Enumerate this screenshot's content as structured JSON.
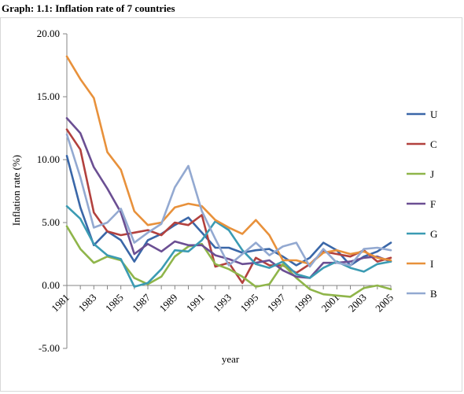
{
  "title": "Graph: 1.1: Inflation rate of 7 countries",
  "chart_data": {
    "type": "line",
    "xlabel": "year",
    "ylabel": "Inflation rate (%)",
    "ylim": [
      -5,
      20
    ],
    "yticks": [
      "20.00",
      "15.00",
      "10.00",
      "5.00",
      "0.00",
      "-5.00"
    ],
    "x": [
      1981,
      1982,
      1983,
      1984,
      1985,
      1986,
      1987,
      1988,
      1989,
      1990,
      1991,
      1992,
      1993,
      1994,
      1995,
      1996,
      1997,
      1998,
      1999,
      2000,
      2001,
      2002,
      2003,
      2004,
      2005
    ],
    "xtick_labels": [
      "1981",
      "1983",
      "1985",
      "1987",
      "1989",
      "1991",
      "1993",
      "1995",
      "1997",
      "1999",
      "2001",
      "2003",
      "2005"
    ],
    "legend_position": "right",
    "grid": false,
    "series": [
      {
        "name": "U",
        "color": "#3a67a8",
        "values": [
          10.3,
          6.2,
          3.2,
          4.3,
          3.6,
          1.9,
          3.6,
          4.1,
          4.8,
          5.4,
          4.2,
          3.0,
          3.0,
          2.6,
          2.8,
          2.9,
          2.3,
          1.6,
          2.2,
          3.4,
          2.8,
          1.6,
          2.3,
          2.7,
          3.4
        ]
      },
      {
        "name": "C",
        "color": "#b2413e",
        "values": [
          12.4,
          10.8,
          5.8,
          4.3,
          4.0,
          4.2,
          4.4,
          4.0,
          5.0,
          4.8,
          5.6,
          1.5,
          1.8,
          0.2,
          2.2,
          1.6,
          1.6,
          1.0,
          1.7,
          2.7,
          2.5,
          2.3,
          2.8,
          1.9,
          2.2
        ]
      },
      {
        "name": "J",
        "color": "#8fb54a",
        "values": [
          4.7,
          2.9,
          1.8,
          2.3,
          2.0,
          0.6,
          0.1,
          0.7,
          2.3,
          3.1,
          3.3,
          1.7,
          1.3,
          0.7,
          -0.1,
          0.1,
          1.7,
          0.6,
          -0.3,
          -0.7,
          -0.8,
          -0.9,
          -0.2,
          0.0,
          -0.3
        ]
      },
      {
        "name": "F",
        "color": "#6b4f93",
        "values": [
          13.3,
          12.1,
          9.4,
          7.7,
          5.8,
          2.5,
          3.3,
          2.7,
          3.5,
          3.2,
          3.2,
          2.4,
          2.1,
          1.7,
          1.8,
          2.0,
          1.2,
          0.7,
          0.6,
          1.8,
          1.8,
          1.9,
          2.2,
          2.3,
          1.9
        ]
      },
      {
        "name": "G",
        "color": "#3b9bb3",
        "values": [
          6.3,
          5.3,
          3.3,
          2.4,
          2.1,
          -0.1,
          0.2,
          1.3,
          2.8,
          2.7,
          3.6,
          5.1,
          4.4,
          2.8,
          1.7,
          1.4,
          1.9,
          0.9,
          0.6,
          1.4,
          1.9,
          1.4,
          1.1,
          1.7,
          1.9
        ]
      },
      {
        "name": "I",
        "color": "#e8913b",
        "values": [
          18.2,
          16.4,
          14.9,
          10.6,
          9.2,
          5.9,
          4.8,
          5.0,
          6.2,
          6.5,
          6.3,
          5.2,
          4.6,
          4.1,
          5.2,
          4.0,
          2.0,
          2.0,
          1.7,
          2.6,
          2.8,
          2.5,
          2.7,
          2.2,
          2.0
        ]
      },
      {
        "name": "B",
        "color": "#93a9d1",
        "values": [
          12.0,
          8.6,
          4.6,
          5.0,
          6.1,
          3.4,
          4.2,
          4.9,
          7.8,
          9.5,
          5.9,
          3.7,
          1.6,
          2.5,
          3.4,
          2.4,
          3.1,
          3.4,
          1.5,
          2.9,
          1.8,
          1.6,
          2.9,
          3.0,
          2.8
        ]
      }
    ]
  }
}
